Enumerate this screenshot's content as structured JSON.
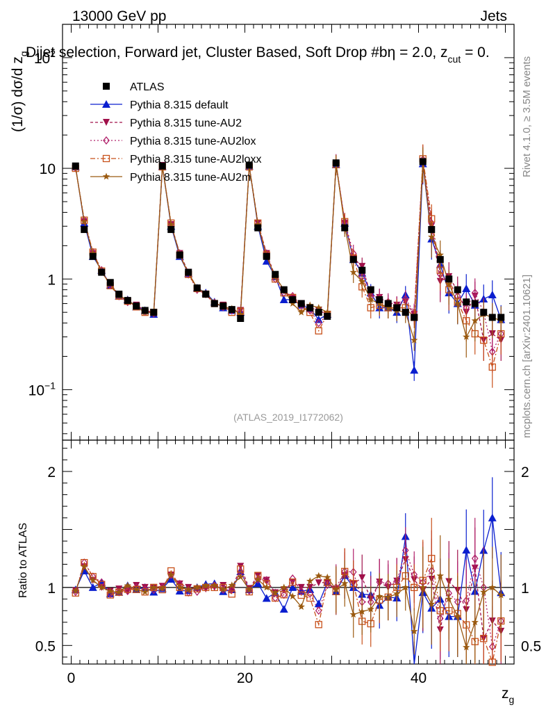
{
  "header": {
    "left": "13000 GeV pp",
    "right": "Jets",
    "title": "Dijet selection, Forward jet, Cluster Based, Soft Drop #b",
    "title_tail": "η = 2.0, z",
    "title_sub": "cut",
    "title_end": " = 0."
  },
  "side": {
    "rivet": "Rivet 4.1.0, ≥ 3.5M events",
    "mcplots": "mcplots.cern.ch [arXiv:2401.10621]"
  },
  "watermark": "(ATLAS_2019_I1772062)",
  "colors": {
    "ATLAS": "#000000",
    "default": "#0a1ecf",
    "AU2": "#a0104a",
    "AU2lox": "#b0206a",
    "AU2loxx": "#c8501a",
    "AU2m": "#9a5a10"
  },
  "chart_data": {
    "type": "scatter",
    "xlabel": "z",
    "xlabel_sub": "g",
    "ylabel": "(1/σ) dσ/d z",
    "ylabel_sub": "g",
    "ratio_ylabel": "Ratio to ATLAS",
    "xlim": [
      -1,
      51
    ],
    "ylim": [
      0.035,
      200
    ],
    "ratio_ylim": [
      0.34,
      2.27
    ],
    "x_ticks": [
      "0",
      "20",
      "40"
    ],
    "y_ticks": [
      "10^-1",
      "1",
      "10",
      "10^2"
    ],
    "ratio_ticks": [
      "0.5",
      "1",
      "2"
    ],
    "x": [
      0.5,
      1.5,
      2.5,
      3.5,
      4.5,
      5.5,
      6.5,
      7.5,
      8.5,
      9.5,
      10.5,
      11.5,
      12.5,
      13.5,
      14.5,
      15.5,
      16.5,
      17.5,
      18.5,
      19.5,
      20.5,
      21.5,
      22.5,
      23.5,
      24.5,
      25.5,
      26.5,
      27.5,
      28.5,
      29.5,
      30.5,
      31.5,
      32.5,
      33.5,
      34.5,
      35.5,
      36.5,
      37.5,
      38.5,
      39.5,
      40.5,
      41.5,
      42.5,
      43.5,
      44.5,
      45.5,
      46.5,
      47.5,
      48.5,
      49.5
    ],
    "legend": [
      "ATLAS",
      "Pythia 8.315 default",
      "Pythia 8.315 tune-AU2",
      "Pythia 8.315 tune-AU2lox",
      "Pythia 8.315 tune-AU2loxx",
      "Pythia 8.315 tune-AU2m"
    ],
    "series": [
      {
        "name": "ATLAS",
        "values": [
          10.5,
          2.8,
          1.6,
          1.15,
          0.93,
          0.73,
          0.64,
          0.57,
          0.52,
          0.5,
          10.5,
          2.8,
          1.65,
          1.15,
          0.83,
          0.73,
          0.6,
          0.57,
          0.53,
          0.44,
          10.7,
          2.9,
          1.6,
          1.1,
          0.8,
          0.65,
          0.6,
          0.55,
          0.5,
          0.46,
          11.2,
          2.9,
          1.5,
          1.2,
          0.8,
          0.65,
          0.6,
          0.55,
          0.5,
          0.45,
          11.5,
          2.8,
          1.5,
          1.0,
          0.8,
          0.62,
          0.6,
          0.5,
          0.45,
          0.45
        ]
      },
      {
        "name": "Pythia 8.315 default",
        "values": [
          10.3,
          3.2,
          1.6,
          1.2,
          0.88,
          0.7,
          0.65,
          0.56,
          0.52,
          0.48,
          10.4,
          3.0,
          1.6,
          1.12,
          0.83,
          0.75,
          0.62,
          0.55,
          0.52,
          0.5,
          10.5,
          3.0,
          1.45,
          1.05,
          0.65,
          0.65,
          0.58,
          0.54,
          0.43,
          0.48,
          10.8,
          3.2,
          1.5,
          1.13,
          0.75,
          0.55,
          0.55,
          0.5,
          0.72,
          0.15,
          11.0,
          2.3,
          1.35,
          0.75,
          0.6,
          0.82,
          0.58,
          0.66,
          0.72,
          0.43
        ]
      },
      {
        "name": "Pythia 8.315 tune-AU2",
        "values": [
          10.2,
          3.3,
          1.7,
          1.15,
          0.9,
          0.72,
          0.62,
          0.58,
          0.52,
          0.5,
          10.6,
          3.1,
          1.7,
          1.15,
          0.82,
          0.72,
          0.6,
          0.58,
          0.52,
          0.52,
          10.6,
          3.2,
          1.7,
          1.05,
          0.78,
          0.68,
          0.6,
          0.55,
          0.52,
          0.48,
          11.0,
          3.2,
          1.55,
          1.3,
          0.72,
          0.68,
          0.6,
          0.58,
          0.62,
          0.48,
          11.2,
          3.0,
          0.95,
          1.05,
          0.78,
          0.5,
          0.7,
          0.28,
          0.32,
          0.28
        ]
      },
      {
        "name": "Pythia 8.315 tune-AU2lox",
        "values": [
          10.1,
          3.4,
          1.75,
          1.2,
          0.88,
          0.7,
          0.62,
          0.57,
          0.51,
          0.49,
          10.5,
          3.1,
          1.7,
          1.1,
          0.8,
          0.73,
          0.61,
          0.56,
          0.52,
          0.5,
          10.4,
          3.1,
          1.7,
          1.0,
          0.75,
          0.7,
          0.58,
          0.52,
          0.4,
          0.47,
          11.2,
          3.3,
          1.7,
          1.05,
          0.7,
          0.68,
          0.62,
          0.58,
          0.66,
          0.5,
          12.0,
          3.2,
          1.1,
          0.95,
          0.7,
          0.55,
          0.75,
          0.5,
          0.22,
          0.32
        ]
      },
      {
        "name": "Pythia 8.315 tune-AU2loxx",
        "values": [
          10.0,
          3.4,
          1.75,
          1.18,
          0.87,
          0.7,
          0.63,
          0.56,
          0.5,
          0.5,
          10.3,
          3.2,
          1.65,
          1.1,
          0.82,
          0.73,
          0.6,
          0.57,
          0.5,
          0.51,
          10.3,
          3.2,
          1.65,
          1.0,
          0.75,
          0.68,
          0.56,
          0.5,
          0.34,
          0.48,
          10.8,
          3.3,
          1.55,
          0.85,
          0.55,
          0.58,
          0.55,
          0.55,
          0.55,
          0.45,
          12.2,
          3.5,
          1.2,
          0.8,
          0.62,
          0.42,
          0.32,
          0.28,
          0.16,
          0.32
        ]
      },
      {
        "name": "Pythia 8.315 tune-AU2m",
        "values": [
          10.2,
          3.3,
          1.7,
          1.15,
          0.9,
          0.7,
          0.65,
          0.56,
          0.5,
          0.5,
          10.4,
          3.1,
          1.65,
          1.13,
          0.83,
          0.74,
          0.61,
          0.56,
          0.54,
          0.48,
          10.5,
          3.1,
          1.6,
          1.05,
          0.8,
          0.6,
          0.5,
          0.58,
          0.55,
          0.5,
          11.0,
          3.0,
          1.15,
          0.95,
          0.65,
          0.6,
          0.55,
          0.52,
          0.5,
          0.28,
          11.5,
          2.4,
          1.65,
          0.9,
          0.6,
          0.3,
          0.42,
          0.48,
          0.45,
          0.42
        ]
      }
    ]
  }
}
